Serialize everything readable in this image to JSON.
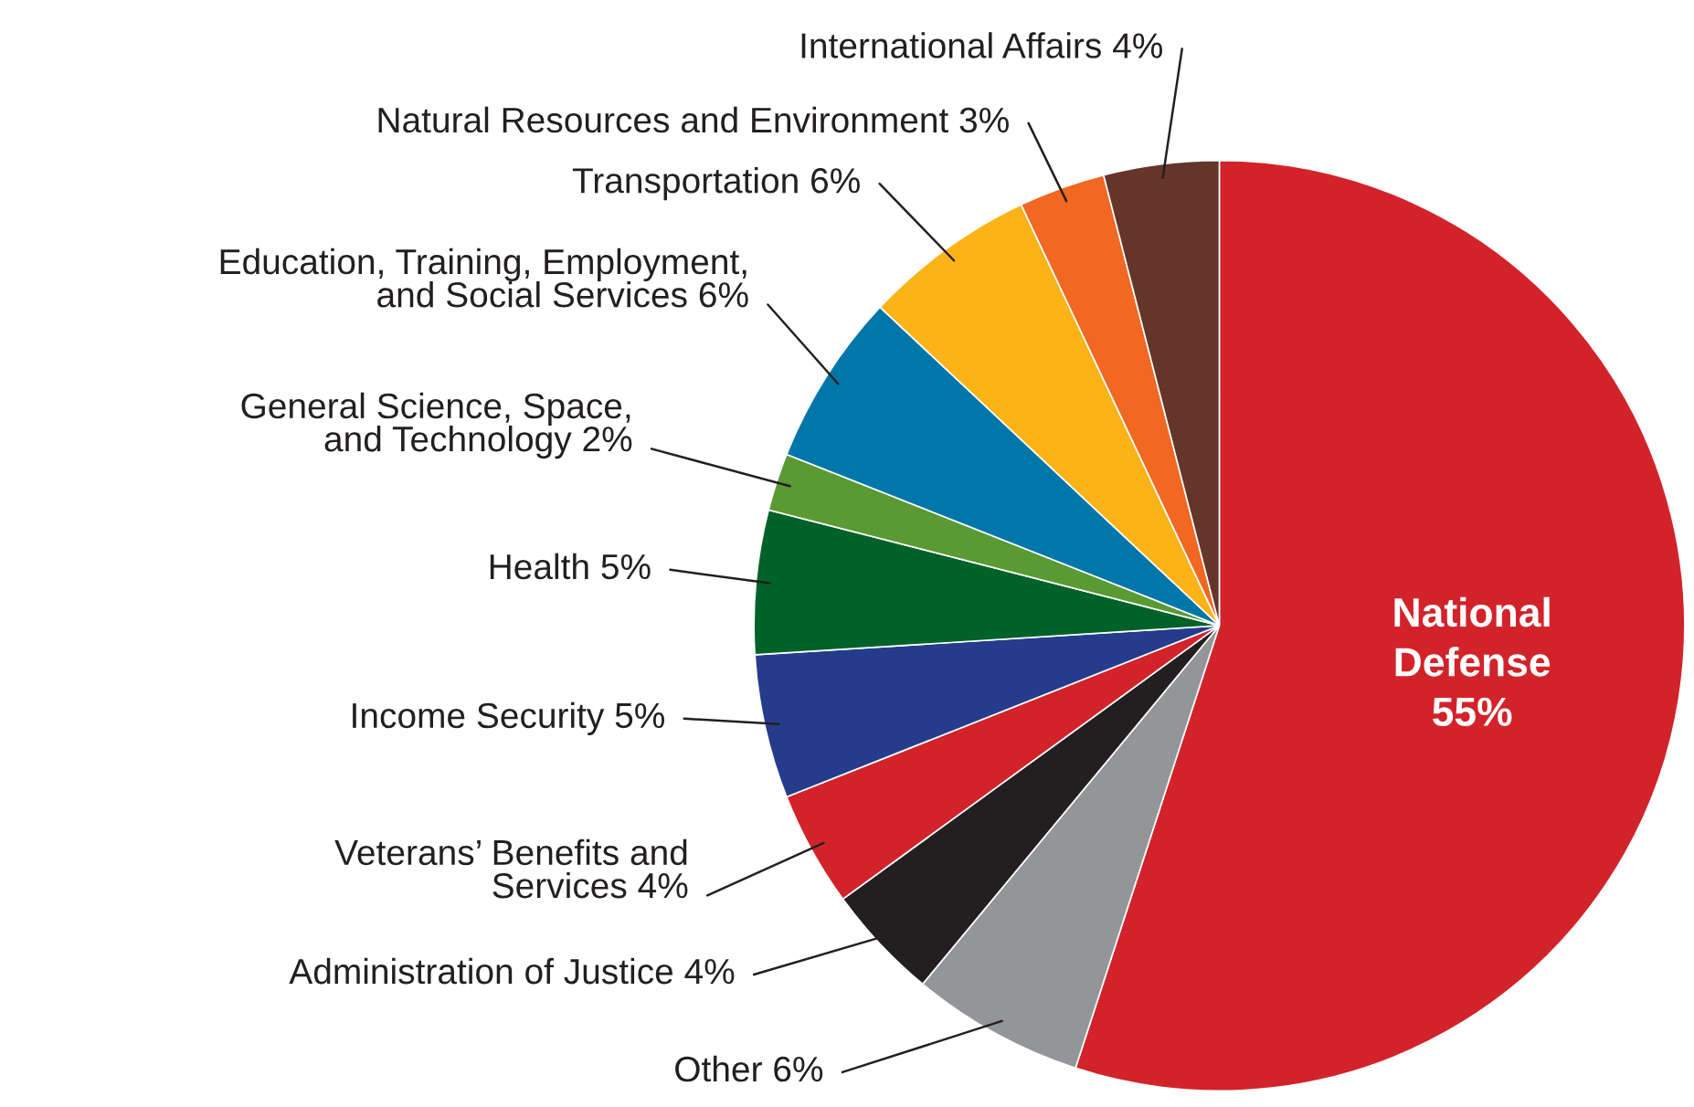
{
  "chart_data": {
    "type": "pie",
    "categories": [
      "National\nDefense",
      "Other",
      "Administration of Justice",
      "Veterans’ Benefits and\nServices",
      "Income Security",
      "Health",
      "General Science, Space,\nand Technology",
      "Education, Training, Employment,\nand Social Services",
      "Transportation",
      "Natural Resources and Environment",
      "International Affairs"
    ],
    "values": [
      55,
      6,
      4,
      4,
      5,
      5,
      2,
      6,
      6,
      3,
      4
    ],
    "value_labels": [
      "55%",
      "6%",
      "4%",
      "4%",
      "5%",
      "5%",
      "2%",
      "6%",
      "6%",
      "3%",
      "4%"
    ],
    "colors": [
      "#d2232a",
      "#939598",
      "#231f20",
      "#d2232a",
      "#253c8c",
      "#006229",
      "#5a9a32",
      "#0077a8",
      "#fbb317",
      "#f26722",
      "#643529"
    ]
  }
}
